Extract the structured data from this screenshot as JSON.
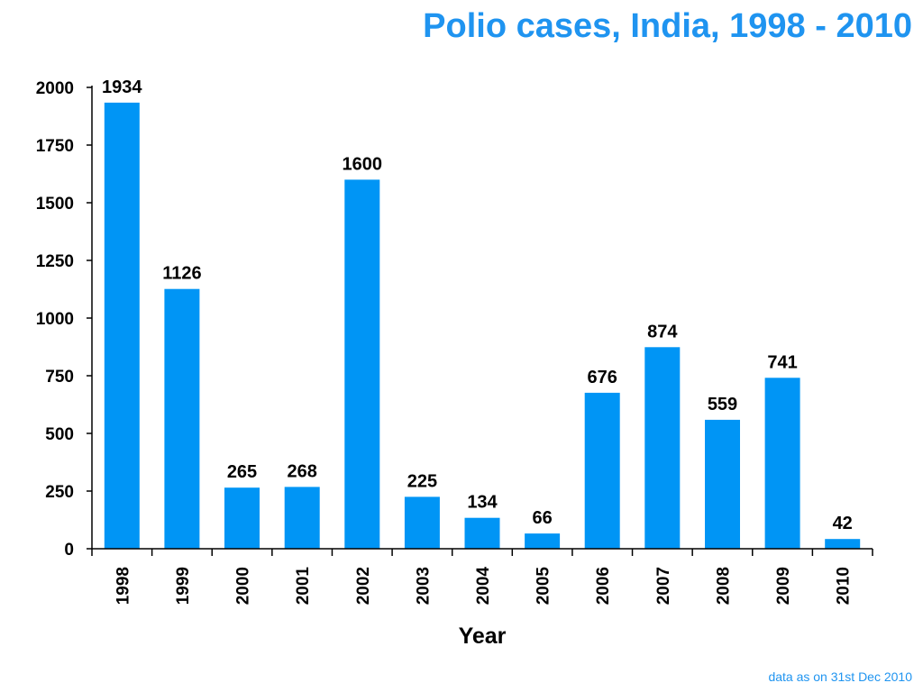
{
  "chart_data": {
    "type": "bar",
    "title": "Polio cases, India, 1998 - 2010",
    "xlabel": "Year",
    "ylabel": "",
    "categories": [
      "1998",
      "1999",
      "2000",
      "2001",
      "2002",
      "2003",
      "2004",
      "2005",
      "2006",
      "2007",
      "2008",
      "2009",
      "2010"
    ],
    "values": [
      1934,
      1126,
      265,
      268,
      1600,
      225,
      134,
      66,
      676,
      874,
      559,
      741,
      42
    ],
    "ylim": [
      0,
      2000
    ],
    "yticks": [
      0,
      250,
      500,
      750,
      1000,
      1250,
      1500,
      1750,
      2000
    ],
    "grid": false,
    "legend": "none",
    "bar_color": "#0095f5",
    "title_color": "#1f94f0"
  },
  "footnote": "data as on 31st Dec 2010"
}
